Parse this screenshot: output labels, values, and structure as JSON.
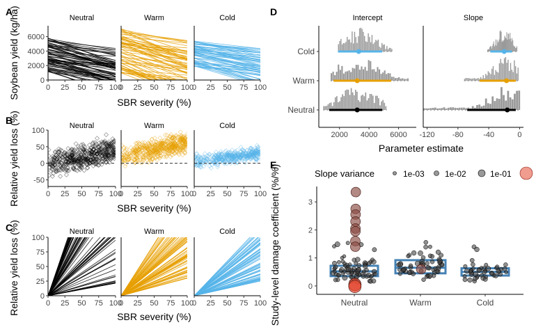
{
  "chart_data": [
    {
      "panel": "A",
      "type": "line",
      "facets": [
        "Neutral",
        "Warm",
        "Cold"
      ],
      "xlabel": "SBR severity (%)",
      "ylabel": "Soybean yield (kg/ha)",
      "xticks": [
        0,
        25,
        50,
        75,
        100
      ],
      "yticks": [
        0,
        2000,
        4000,
        6000
      ],
      "xlim": [
        0,
        100
      ],
      "ylim": [
        0,
        7500
      ],
      "series": [
        {
          "facet": "Neutral",
          "color": "#000000",
          "intercept_range": [
            1000,
            5900
          ],
          "slope_range": [
            -35,
            -3
          ]
        },
        {
          "facet": "Warm",
          "color": "#E69F00",
          "intercept_range": [
            800,
            7200
          ],
          "slope_range": [
            -45,
            -5
          ]
        },
        {
          "facet": "Cold",
          "color": "#56B4E9",
          "intercept_range": [
            1800,
            5500
          ],
          "slope_range": [
            -30,
            -5
          ]
        }
      ]
    },
    {
      "panel": "B",
      "type": "scatter",
      "facets": [
        "Neutral",
        "Warm",
        "Cold"
      ],
      "xlabel": "SBR severity (%)",
      "ylabel": "Relative yield loss (%)",
      "xticks": [
        0,
        25,
        50,
        75,
        100
      ],
      "yticks": [
        -50,
        0,
        50,
        100
      ],
      "xlim": [
        0,
        100
      ],
      "ylim": [
        -70,
        100
      ],
      "reference_line": 0,
      "series": [
        {
          "facet": "Neutral",
          "color": "#000000",
          "trend": [
            [
              0,
              0
            ],
            [
              100,
              40
            ]
          ],
          "spread": 18
        },
        {
          "facet": "Warm",
          "color": "#E69F00",
          "trend": [
            [
              0,
              20
            ],
            [
              100,
              60
            ]
          ],
          "spread": 15
        },
        {
          "facet": "Cold",
          "color": "#56B4E9",
          "trend": [
            [
              0,
              5
            ],
            [
              100,
              30
            ]
          ],
          "spread": 10
        }
      ]
    },
    {
      "panel": "C",
      "type": "line",
      "facets": [
        "Neutral",
        "Warm",
        "Cold"
      ],
      "xlabel": "SBR severity (%)",
      "ylabel": "Relative yield loss (%)",
      "xticks": [
        0,
        25,
        50,
        75,
        100
      ],
      "yticks": [
        0,
        25,
        50,
        75,
        100
      ],
      "xlim": [
        0,
        100
      ],
      "ylim": [
        0,
        100
      ],
      "series": [
        {
          "facet": "Neutral",
          "color": "#000000",
          "slope_range": [
            0.2,
            3.4
          ]
        },
        {
          "facet": "Warm",
          "color": "#E69F00",
          "slope_range": [
            0.3,
            1.8
          ]
        },
        {
          "facet": "Cold",
          "color": "#56B4E9",
          "slope_range": [
            0.25,
            1.2
          ]
        }
      ]
    },
    {
      "panel": "D",
      "type": "histogram",
      "facets": [
        "Intercept",
        "Slope"
      ],
      "categories": [
        "Cold",
        "Warm",
        "Neutral"
      ],
      "xlabel": "Parameter estimate",
      "facet_xticks": [
        [
          2000,
          4000,
          6000
        ],
        [
          -120,
          -80,
          -40,
          0
        ]
      ],
      "facet_xlim": [
        [
          600,
          7200
        ],
        [
          -125,
          5
        ]
      ],
      "series": [
        {
          "name": "Cold",
          "color": "#56B4E9",
          "intercept": {
            "estimate": 3300,
            "interval": [
              1900,
              4900
            ],
            "range": [
              1900,
              5600
            ]
          },
          "slope": {
            "estimate": -20,
            "interval": [
              -38,
              -10
            ],
            "range": [
              -42,
              -3
            ]
          }
        },
        {
          "name": "Warm",
          "color": "#E69F00",
          "intercept": {
            "estimate": 3200,
            "interval": [
              1600,
              5500
            ],
            "range": [
              1400,
              6700
            ]
          },
          "slope": {
            "estimate": -17,
            "interval": [
              -52,
              -5
            ],
            "range": [
              -72,
              -1
            ]
          }
        },
        {
          "name": "Neutral",
          "color": "#000000",
          "intercept": {
            "estimate": 3200,
            "interval": [
              1300,
              4900
            ],
            "range": [
              900,
              5200
            ]
          },
          "slope": {
            "estimate": -16,
            "interval": [
              -68,
              -5
            ],
            "range": [
              -125,
              1
            ]
          }
        }
      ]
    },
    {
      "panel": "E",
      "type": "boxplot",
      "categories": [
        "Neutral",
        "Warm",
        "Cold"
      ],
      "ylabel": "Study-level damage coefficient (%/%)",
      "yticks": [
        0,
        1,
        2,
        3
      ],
      "ylim": [
        -0.3,
        3.55
      ],
      "legend_title": "Slope variance",
      "legend_labels": [
        "1e-03",
        "1e-02",
        "1e-01"
      ],
      "box_color": "#4682B4",
      "boxes": [
        {
          "category": "Neutral",
          "q1": 0.35,
          "median": 0.52,
          "q3": 0.72,
          "range": [
            -0.05,
            3.4
          ]
        },
        {
          "category": "Warm",
          "q1": 0.45,
          "median": 0.65,
          "q3": 0.92,
          "range": [
            0.15,
            1.75
          ]
        },
        {
          "category": "Cold",
          "q1": 0.37,
          "median": 0.5,
          "q3": 0.63,
          "range": [
            0.1,
            1.5
          ]
        }
      ],
      "large_variance_points": [
        {
          "category": "Neutral",
          "y": 3.35
        },
        {
          "category": "Neutral",
          "y": 2.75
        },
        {
          "category": "Neutral",
          "y": 2.55
        },
        {
          "category": "Neutral",
          "y": 2.3
        },
        {
          "category": "Neutral",
          "y": 2.05
        },
        {
          "category": "Neutral",
          "y": 1.95
        },
        {
          "category": "Neutral",
          "y": 1.6
        },
        {
          "category": "Neutral",
          "y": 1.4
        },
        {
          "category": "Neutral",
          "y": 0.05
        },
        {
          "category": "Neutral",
          "y": -0.02
        },
        {
          "category": "Warm",
          "y": 0.6
        }
      ]
    }
  ]
}
